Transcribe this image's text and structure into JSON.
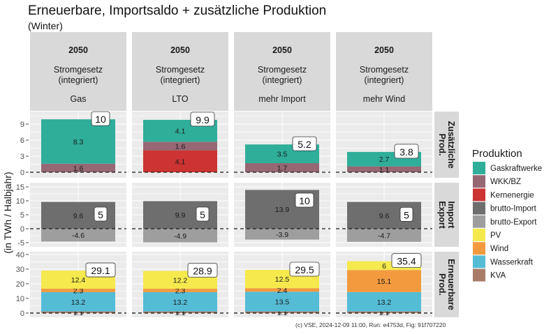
{
  "chart_data": {
    "type": "bar",
    "title": "Erneuerbare, Importsaldo + zusätzliche Produktion",
    "subtitle": "(Winter)",
    "ylabel": "(in TWh / Halbjahr)",
    "footer": "(c) VSE, 2024-12-09 11:00, Run: e4753d, Fig: 91f707220",
    "legend": {
      "title": "Produktion",
      "position": "right"
    },
    "colors": {
      "Gaskraftwerke": "#2FAE9A",
      "WKK/BZ": "#956874",
      "Kernenergie": "#CC3333",
      "brutto-Import": "#6E6E6E",
      "brutto-Export": "#9E9E9E",
      "PV": "#F5E94E",
      "Wind": "#F39A3F",
      "Wasserkraft": "#55BCD6",
      "KVA": "#A97C67"
    },
    "legend_order": [
      "Gaskraftwerke",
      "WKK/BZ",
      "Kernenergie",
      "brutto-Import",
      "brutto-Export",
      "PV",
      "Wind",
      "Wasserkraft",
      "KVA"
    ],
    "columns": [
      {
        "year": "2050",
        "scenario": "Stromgesetz (integriert)",
        "variant": "Gas"
      },
      {
        "year": "2050",
        "scenario": "Stromgesetz (integriert)",
        "variant": "LTO"
      },
      {
        "year": "2050",
        "scenario": "Stromgesetz (integriert)",
        "variant": "mehr Import"
      },
      {
        "year": "2050",
        "scenario": "Stromgesetz (integriert)",
        "variant": "mehr Wind"
      }
    ],
    "rows": [
      {
        "label": "Zusätzliche Prod.",
        "ylim": [
          -1.04,
          11.35
        ],
        "ticks": [
          0,
          3,
          6,
          9
        ],
        "panels": [
          {
            "segments": [
              {
                "name": "WKK/BZ",
                "value": 1.6
              },
              {
                "name": "Gaskraftwerke",
                "value": 8.3
              }
            ],
            "total": "10"
          },
          {
            "segments": [
              {
                "name": "Kernenergie",
                "value": 4.1
              },
              {
                "name": "WKK/BZ",
                "value": 1.6
              },
              {
                "name": "Gaskraftwerke",
                "value": 4.1
              }
            ],
            "total": "9.9"
          },
          {
            "segments": [
              {
                "name": "WKK/BZ",
                "value": 1.7
              },
              {
                "name": "Gaskraftwerke",
                "value": 3.5
              }
            ],
            "total": "5.2"
          },
          {
            "segments": [
              {
                "name": "WKK/BZ",
                "value": 1.1
              },
              {
                "name": "Gaskraftwerke",
                "value": 2.7
              }
            ],
            "total": "3.8"
          }
        ]
      },
      {
        "label": "Import Export",
        "ylim": [
          -6.5,
          16.5
        ],
        "ticks": [
          -5,
          0,
          5,
          10,
          15
        ],
        "panels": [
          {
            "segments": [
              {
                "name": "brutto-Import",
                "value": 9.6
              },
              {
                "name": "brutto-Export",
                "value": -4.6
              }
            ],
            "total": "5"
          },
          {
            "segments": [
              {
                "name": "brutto-Import",
                "value": 9.9
              },
              {
                "name": "brutto-Export",
                "value": -4.9
              }
            ],
            "total": "5"
          },
          {
            "segments": [
              {
                "name": "brutto-Import",
                "value": 13.9
              },
              {
                "name": "brutto-Export",
                "value": -3.9
              }
            ],
            "total": "10"
          },
          {
            "segments": [
              {
                "name": "brutto-Import",
                "value": 9.6
              },
              {
                "name": "brutto-Export",
                "value": -4.7
              }
            ],
            "total": "5"
          }
        ]
      },
      {
        "label": "Erneuerbare Prod.",
        "ylim": [
          -2.9,
          41.9
        ],
        "ticks": [
          0,
          10,
          20,
          30,
          40
        ],
        "panels": [
          {
            "segments": [
              {
                "name": "KVA",
                "value": 1.1
              },
              {
                "name": "Wasserkraft",
                "value": 13.2
              },
              {
                "name": "Wind",
                "value": 2.3
              },
              {
                "name": "PV",
                "value": 12.4
              }
            ],
            "total": "29.1"
          },
          {
            "segments": [
              {
                "name": "KVA",
                "value": 1.1
              },
              {
                "name": "Wasserkraft",
                "value": 13.2
              },
              {
                "name": "Wind",
                "value": 2.3
              },
              {
                "name": "PV",
                "value": 12.2
              }
            ],
            "total": "28.9"
          },
          {
            "segments": [
              {
                "name": "KVA",
                "value": 1.1
              },
              {
                "name": "Wasserkraft",
                "value": 13.5
              },
              {
                "name": "Wind",
                "value": 2.4
              },
              {
                "name": "PV",
                "value": 12.5
              }
            ],
            "total": "29.5"
          },
          {
            "segments": [
              {
                "name": "KVA",
                "value": 1.1
              },
              {
                "name": "Wasserkraft",
                "value": 13.2
              },
              {
                "name": "Wind",
                "value": 15.1
              },
              {
                "name": "PV",
                "value": 6
              }
            ],
            "total": "35.4"
          }
        ]
      }
    ]
  }
}
